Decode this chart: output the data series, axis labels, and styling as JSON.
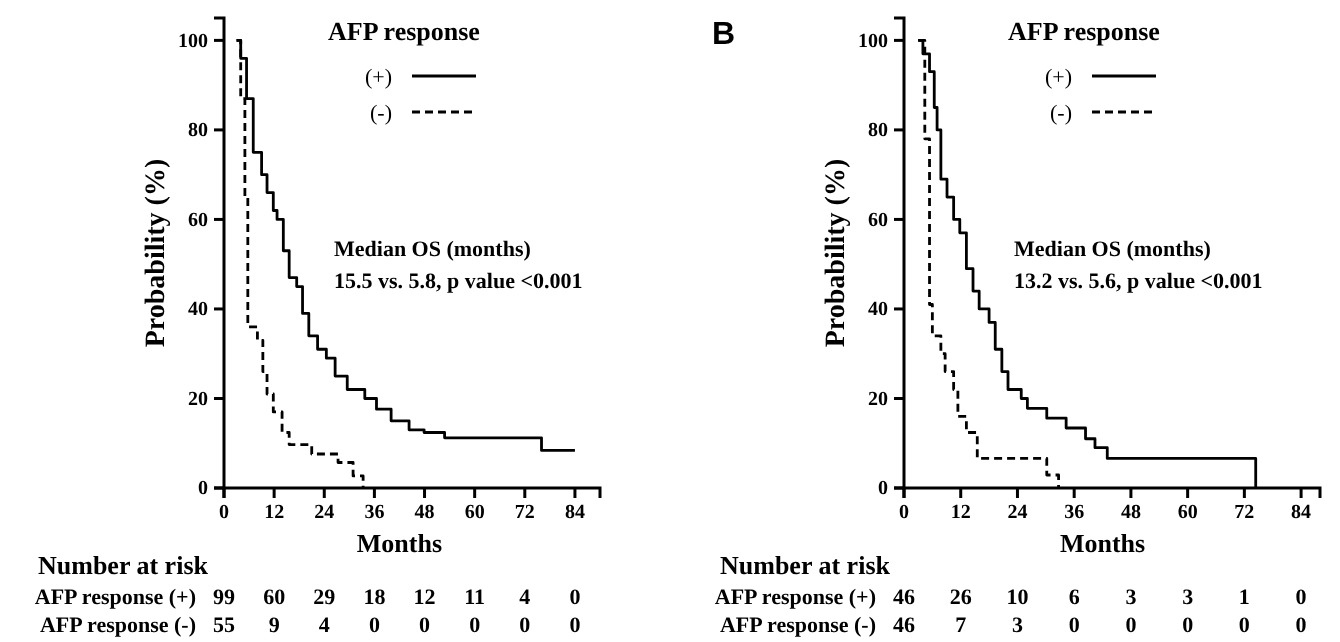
{
  "chart_data": [
    {
      "type": "step",
      "xlabel": "Months",
      "ylabel": "Probability (%)",
      "legend_title": "AFP response",
      "legend": "top",
      "xlim": [
        0,
        90
      ],
      "ylim": [
        0,
        105
      ],
      "xticks": [
        0,
        12,
        24,
        36,
        48,
        60,
        72,
        84
      ],
      "yticks": [
        0,
        20,
        40,
        60,
        80,
        100
      ],
      "series": [
        {
          "name": "(+)",
          "color": "#000000",
          "line_style": "solid",
          "x": [
            3,
            4,
            5.4,
            7,
            9,
            10.3,
            11.8,
            12.7,
            14.2,
            15.6,
            17.4,
            18.8,
            20.3,
            22.4,
            24.5,
            26.6,
            29.5,
            33.7,
            36.5,
            40,
            44.3,
            47.9,
            52.8,
            76,
            84
          ],
          "values": [
            100,
            96,
            87,
            75,
            70,
            66,
            62,
            60,
            53,
            47,
            45,
            39,
            34,
            31,
            29,
            25,
            22,
            20,
            17.6,
            15,
            13,
            12.4,
            11.2,
            8.4,
            8.4
          ]
        },
        {
          "name": "(-)",
          "color": "#000000",
          "line_style": "dashed",
          "x": [
            3,
            4,
            5,
            5.7,
            8,
            9.3,
            10.3,
            11.8,
            13.9,
            15.6,
            21,
            27.3,
            30.9,
            33.3
          ],
          "values": [
            100,
            87,
            65,
            36,
            33,
            26,
            21,
            17,
            12.4,
            9.7,
            7.6,
            5.7,
            2.7,
            0
          ]
        }
      ],
      "annotations": [
        "Median OS (months)",
        "15.5 vs. 5.8, p value <0.001",
        "Number at risk",
        "AFP response (+)",
        "99",
        "60",
        "29",
        "18",
        "12",
        "11",
        "4",
        "0",
        "AFP response (-)",
        "55",
        "9",
        "4",
        "0",
        "0",
        "0",
        "0",
        "0"
      ]
    },
    {
      "type": "step",
      "title": "B",
      "xlabel": "Months",
      "ylabel": "Probability (%)",
      "legend_title": "AFP response",
      "legend": "top",
      "xlim": [
        0,
        88
      ],
      "ylim": [
        0,
        105
      ],
      "xticks": [
        0,
        12,
        24,
        36,
        48,
        60,
        72,
        84
      ],
      "yticks": [
        0,
        20,
        40,
        60,
        80,
        100
      ],
      "series": [
        {
          "name": "(+)",
          "color": "#000000",
          "line_style": "solid",
          "x": [
            3,
            4,
            5.4,
            6.4,
            7,
            7.8,
            9.1,
            10.5,
            11.8,
            13.2,
            14.6,
            15.9,
            18,
            19.3,
            20.7,
            22,
            24.8,
            26.1,
            30.2,
            34.3,
            38.4,
            40.4,
            43,
            74.4,
            74.4
          ],
          "values": [
            100,
            97,
            93,
            85,
            80,
            69,
            65,
            60,
            57,
            49,
            44,
            40,
            37,
            31,
            26,
            22,
            20,
            17.8,
            15.6,
            13.4,
            11,
            9,
            6.6,
            6.6,
            0
          ]
        },
        {
          "name": "(-)",
          "color": "#000000",
          "line_style": "dashed",
          "x": [
            3,
            4.4,
            5.4,
            6,
            7.8,
            8.7,
            10.5,
            11.4,
            13.2,
            15.5,
            27.2,
            30.2,
            32.7
          ],
          "values": [
            100,
            78,
            41,
            34,
            30,
            26,
            22,
            16,
            12.4,
            6.6,
            6.6,
            2.9,
            0
          ]
        }
      ],
      "annotations": [
        "Median OS (months)",
        "13.2 vs. 5.6, p value <0.001",
        "Number at risk",
        "AFP response (+)",
        "46",
        "26",
        "10",
        "6",
        "3",
        "3",
        "1",
        "0",
        "AFP response (-)",
        "46",
        "7",
        "3",
        "0",
        "0",
        "0",
        "0",
        "0"
      ]
    }
  ]
}
